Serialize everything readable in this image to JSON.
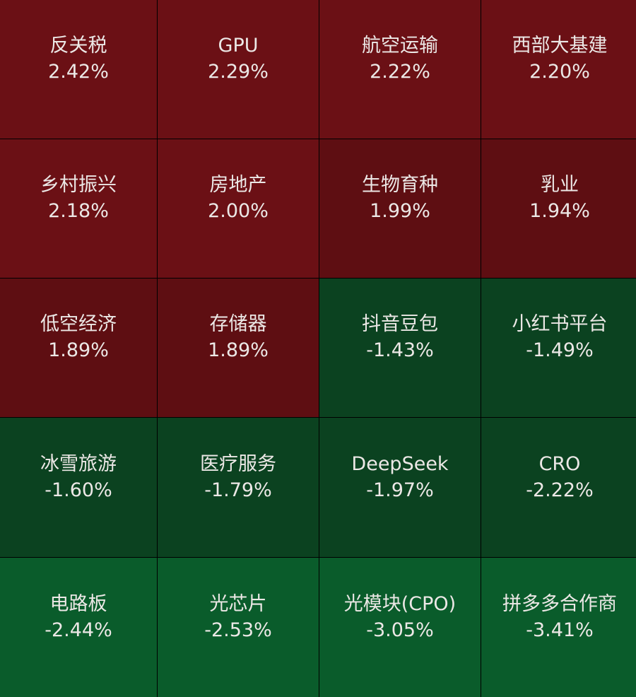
{
  "chart_data": {
    "type": "heatmap",
    "colors": {
      "up_strong": "#6b1015",
      "up": "#5e0e12",
      "down": "#0b4220",
      "down_strong": "#0a5c2b",
      "text": "#ece8e6"
    },
    "cells": [
      {
        "name": "反关税",
        "change": "2.42%",
        "value": 2.42
      },
      {
        "name": "GPU",
        "change": "2.29%",
        "value": 2.29
      },
      {
        "name": "航空运输",
        "change": "2.22%",
        "value": 2.22
      },
      {
        "name": "西部大基建",
        "change": "2.20%",
        "value": 2.2
      },
      {
        "name": "乡村振兴",
        "change": "2.18%",
        "value": 2.18
      },
      {
        "name": "房地产",
        "change": "2.00%",
        "value": 2.0
      },
      {
        "name": "生物育种",
        "change": "1.99%",
        "value": 1.99
      },
      {
        "name": "乳业",
        "change": "1.94%",
        "value": 1.94
      },
      {
        "name": "低空经济",
        "change": "1.89%",
        "value": 1.89
      },
      {
        "name": "存储器",
        "change": "1.89%",
        "value": 1.89
      },
      {
        "name": "抖音豆包",
        "change": "-1.43%",
        "value": -1.43
      },
      {
        "name": "小红书平台",
        "change": "-1.49%",
        "value": -1.49
      },
      {
        "name": "冰雪旅游",
        "change": "-1.60%",
        "value": -1.6
      },
      {
        "name": "医疗服务",
        "change": "-1.79%",
        "value": -1.79
      },
      {
        "name": "DeepSeek",
        "change": "-1.97%",
        "value": -1.97
      },
      {
        "name": "CRO",
        "change": "-2.22%",
        "value": -2.22
      },
      {
        "name": "电路板",
        "change": "-2.44%",
        "value": -2.44
      },
      {
        "name": "光芯片",
        "change": "-2.53%",
        "value": -2.53
      },
      {
        "name": "光模块(CPO)",
        "change": "-3.05%",
        "value": -3.05
      },
      {
        "name": "拼多多合作商",
        "change": "-3.41%",
        "value": -3.41
      }
    ]
  }
}
